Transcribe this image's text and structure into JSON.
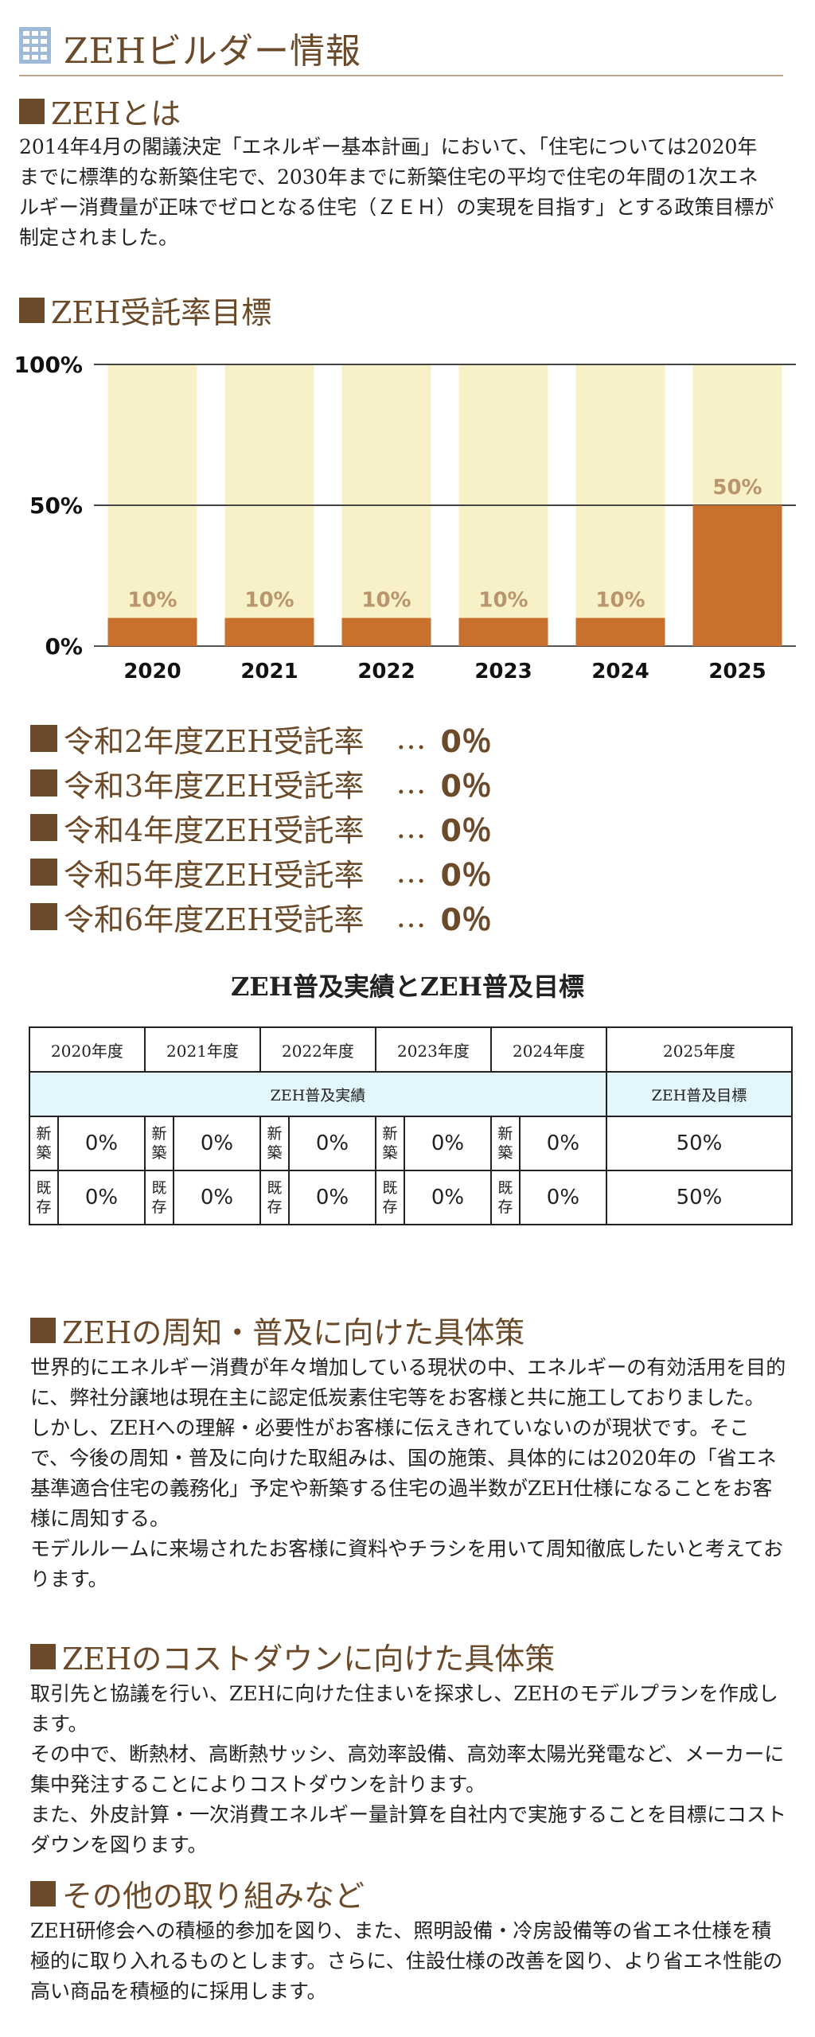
{
  "header": {
    "title": "ZEHビルダー情報",
    "icon": "building-icon",
    "accent": "#6b4a2a"
  },
  "section_zeh": {
    "heading": "ZEHとは",
    "text": "2014年4月の閣議決定「エネルギー基本計画」において、「住宅については2020年までに標準的な新築住宅で、2030年までに新築住宅の平均で住宅の年間の1次エネルギー消費量が正味でゼロとなる住宅（ＺＥＨ）の実現を目指す」とする政策目標が制定されました。"
  },
  "section_target": {
    "heading": "ZEH受託率目標"
  },
  "chart_data": {
    "type": "bar",
    "categories": [
      "2020",
      "2021",
      "2022",
      "2023",
      "2024",
      "2025"
    ],
    "values": [
      10,
      10,
      10,
      10,
      10,
      50
    ],
    "value_labels": [
      "10%",
      "10%",
      "10%",
      "10%",
      "10%",
      "50%"
    ],
    "ytick_labels": [
      "100%",
      "50%",
      "0%"
    ],
    "yticks": [
      100,
      50,
      0
    ],
    "ylim": [
      0,
      100
    ],
    "colors": {
      "bar": "#c8712e",
      "background_bar": "#f8f0c7",
      "label_small": "#b8956a",
      "label_large": "#b8956a"
    }
  },
  "rates": [
    {
      "label": "令和2年度ZEH受託率",
      "dots": "…",
      "value": "0％"
    },
    {
      "label": "令和3年度ZEH受託率",
      "dots": "…",
      "value": "0％"
    },
    {
      "label": "令和4年度ZEH受託率",
      "dots": "…",
      "value": "0％"
    },
    {
      "label": "令和5年度ZEH受託率",
      "dots": "…",
      "value": "0％"
    },
    {
      "label": "令和6年度ZEH受託率",
      "dots": "…",
      "value": "0％"
    }
  ],
  "table": {
    "title": "ZEH普及実績とZEH普及目標",
    "years": [
      "2020年度",
      "2021年度",
      "2022年度",
      "2023年度",
      "2024年度",
      "2025年度"
    ],
    "band_actual": "ZEH普及実績",
    "band_target": "ZEH普及目標",
    "row_new_label": "新築",
    "row_existing_label": "既存",
    "new_values": [
      "0%",
      "0%",
      "0%",
      "0%",
      "0%",
      "50%"
    ],
    "existing_values": [
      "0%",
      "0%",
      "0%",
      "0%",
      "0%",
      "50%"
    ]
  },
  "section_promo": {
    "heading": "ZEHの周知・普及に向けた具体策",
    "text": "世界的にエネルギー消費が年々増加している現状の中、エネルギーの有効活用を目的に、弊社分譲地は現在主に認定低炭素住宅等をお客様と共に施工しておりました。\nしかし、ZEHへの理解・必要性がお客様に伝えきれていないのが現状です。そこで、今後の周知・普及に向けた取組みは、国の施策、具体的には2020年の「省エネ基準適合住宅の義務化」予定や新築する住宅の過半数がZEH仕様になることをお客様に周知する。\nモデルルームに来場されたお客様に資料やチラシを用いて周知徹底したいと考えております。"
  },
  "section_cost": {
    "heading": "ZEHのコストダウンに向けた具体策",
    "text": "取引先と協議を行い、ZEHに向けた住まいを探求し、ZEHのモデルプランを作成します。\nその中で、断熱材、高断熱サッシ、高効率設備、高効率太陽光発電など、メーカーに集中発注することによりコストダウンを計ります。\nまた、外皮計算・一次消費エネルギー量計算を自社内で実施することを目標にコストダウンを図ります。"
  },
  "section_other": {
    "heading": "その他の取り組みなど",
    "text": "ZEH研修会への積極的参加を図り、また、照明設備・冷房設備等の省エネ仕様を積極的に取り入れるものとします。さらに、住設仕様の改善を図り、より省エネ性能の高い商品を積極的に採用します。"
  }
}
